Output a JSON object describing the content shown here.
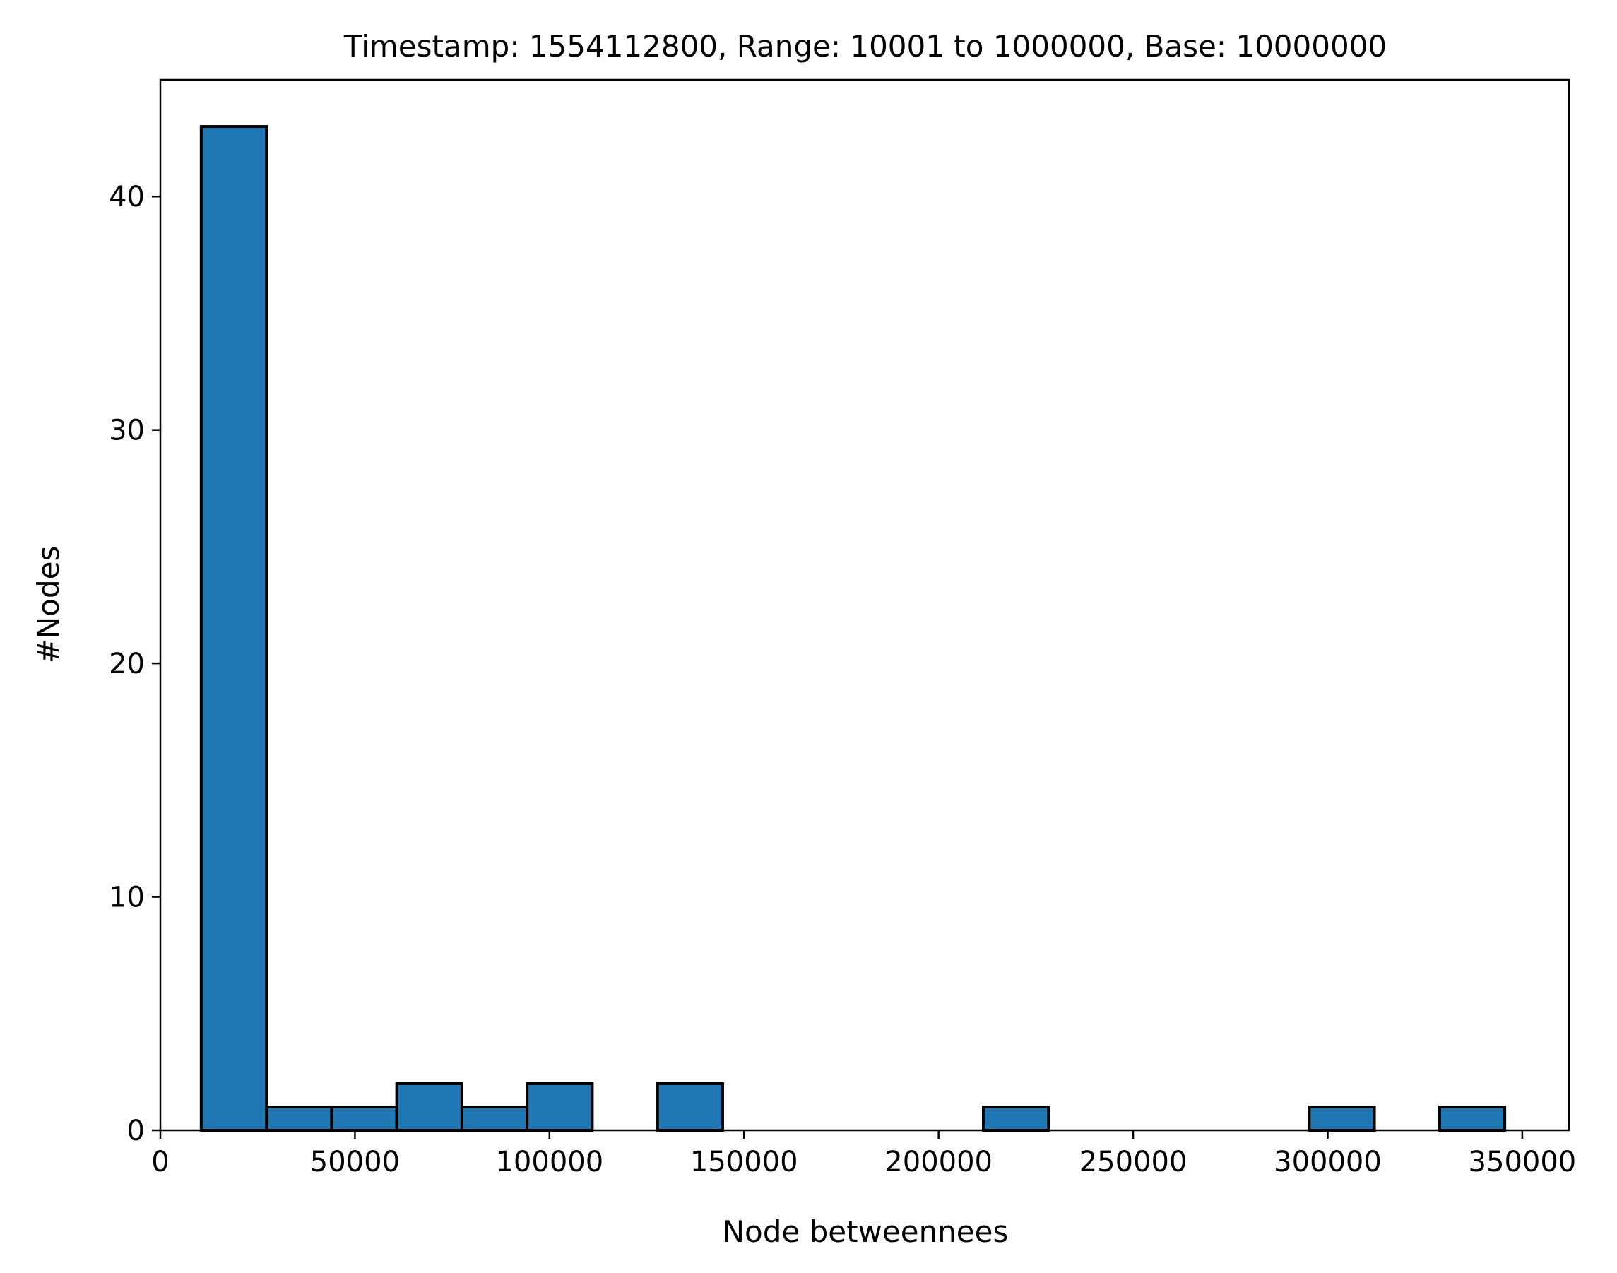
{
  "chart_data": {
    "type": "bar",
    "title": "Timestamp: 1554112800, Range: 10001 to 1000000, Base: 10000000",
    "xlabel": "Node betweennees",
    "ylabel": "#Nodes",
    "xlim": [
      0,
      362000
    ],
    "ylim": [
      0,
      45
    ],
    "xticks": [
      0,
      50000,
      100000,
      150000,
      200000,
      250000,
      300000,
      350000
    ],
    "yticks": [
      0,
      10,
      20,
      30,
      40
    ],
    "bin_start": 10500,
    "bin_width": 16750,
    "values": [
      43,
      1,
      1,
      2,
      1,
      2,
      0,
      2,
      0,
      0,
      0,
      0,
      1,
      0,
      0,
      0,
      0,
      1,
      0,
      1
    ],
    "bar_color": "#1f77b4",
    "edge_color": "#000000",
    "grid": false,
    "legend": "none"
  }
}
